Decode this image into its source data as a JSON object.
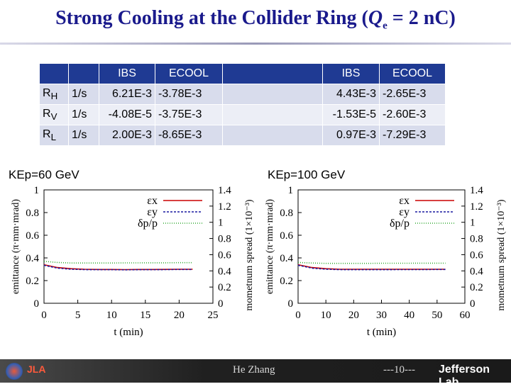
{
  "title": {
    "main": "Strong Cooling at the Collider Ring (",
    "q": "Q",
    "sub": "e",
    "rest": " = 2 nC)"
  },
  "table": {
    "headers": [
      "",
      "",
      "IBS",
      "ECOOL",
      "",
      "IBS",
      "ECOOL"
    ],
    "rows": [
      {
        "name": "R",
        "sub": "H",
        "unit": "1/s",
        "ibs1": "6.21E-3",
        "ecool1": "-3.78E-3",
        "ibs2": "4.43E-3",
        "ecool2": "-2.65E-3"
      },
      {
        "name": "R",
        "sub": "V",
        "unit": "1/s",
        "ibs1": "-4.08E-5",
        "ecool1": "-3.75E-3",
        "ibs2": "-1.53E-5",
        "ecool2": "-2.60E-3"
      },
      {
        "name": "R",
        "sub": "L",
        "unit": "1/s",
        "ibs1": "2.00E-3",
        "ecool1": "-8.65E-3",
        "ibs2": "0.97E-3",
        "ecool2": "-7.29E-3"
      }
    ]
  },
  "plot_labels": {
    "left": "KEp=60 GeV",
    "right": "KEp=100 GeV"
  },
  "colors": {
    "ex": "#cc0000",
    "ey": "#1a1aa0",
    "dp": "#33aa33",
    "header": "#1f3a93"
  },
  "chart_data": [
    {
      "type": "line",
      "title": "KEp=60 GeV",
      "xlabel": "t (min)",
      "ylabel": "emittance (π·mm·mrad)",
      "y2label": "mometnum spread (1×10⁻³)",
      "xlim": [
        0,
        25
      ],
      "ylim": [
        0,
        1
      ],
      "y2lim": [
        0,
        1.4
      ],
      "xticks": [
        "0",
        "5",
        "10",
        "15",
        "20",
        "25"
      ],
      "yticks": [
        "0",
        "0.2",
        "0.4",
        "0.6",
        "0.8",
        "1"
      ],
      "y2ticks": [
        "0",
        "0.2",
        "0.4",
        "0.6",
        "0.8",
        "1",
        "1.2",
        "1.4"
      ],
      "legend": [
        "εx",
        "εy",
        "δp/p"
      ],
      "series": [
        {
          "name": "εx",
          "x": [
            0,
            2,
            4,
            6,
            8,
            10,
            12,
            14,
            16,
            18,
            20,
            22
          ],
          "y": [
            0.34,
            0.315,
            0.305,
            0.3,
            0.298,
            0.298,
            0.297,
            0.298,
            0.298,
            0.299,
            0.3,
            0.3
          ]
        },
        {
          "name": "εy",
          "x": [
            0,
            2,
            4,
            6,
            8,
            10,
            12,
            14,
            16,
            18,
            20,
            22
          ],
          "y": [
            0.335,
            0.31,
            0.3,
            0.297,
            0.296,
            0.296,
            0.295,
            0.296,
            0.296,
            0.297,
            0.298,
            0.298
          ]
        },
        {
          "name": "δp/p",
          "x": [
            0,
            2,
            4,
            6,
            8,
            10,
            12,
            14,
            16,
            18,
            20,
            22
          ],
          "y": [
            0.37,
            0.36,
            0.355,
            0.355,
            0.355,
            0.355,
            0.356,
            0.356,
            0.357,
            0.357,
            0.358,
            0.358
          ]
        }
      ]
    },
    {
      "type": "line",
      "title": "KEp=100 GeV",
      "xlabel": "t (min)",
      "ylabel": "emittance (π·mm·mrad)",
      "y2label": "mometnum spread (1×10⁻³)",
      "xlim": [
        0,
        60
      ],
      "ylim": [
        0,
        1
      ],
      "y2lim": [
        0,
        1.4
      ],
      "xticks": [
        "0",
        "10",
        "20",
        "30",
        "40",
        "50",
        "60"
      ],
      "yticks": [
        "0",
        "0.2",
        "0.4",
        "0.6",
        "0.8",
        "1"
      ],
      "y2ticks": [
        "0",
        "0.2",
        "0.4",
        "0.6",
        "0.8",
        "1",
        "1.2",
        "1.4"
      ],
      "legend": [
        "εx",
        "εy",
        "δp/p"
      ],
      "series": [
        {
          "name": "εx",
          "x": [
            0,
            5,
            10,
            15,
            20,
            25,
            30,
            35,
            40,
            45,
            50,
            53
          ],
          "y": [
            0.34,
            0.315,
            0.305,
            0.3,
            0.3,
            0.3,
            0.3,
            0.3,
            0.3,
            0.3,
            0.3,
            0.3
          ]
        },
        {
          "name": "εy",
          "x": [
            0,
            5,
            10,
            15,
            20,
            25,
            30,
            35,
            40,
            45,
            50,
            53
          ],
          "y": [
            0.335,
            0.31,
            0.3,
            0.297,
            0.296,
            0.296,
            0.296,
            0.297,
            0.297,
            0.297,
            0.298,
            0.298
          ]
        },
        {
          "name": "δp/p",
          "x": [
            0,
            5,
            10,
            15,
            20,
            25,
            30,
            35,
            40,
            45,
            50,
            53
          ],
          "y": [
            0.36,
            0.355,
            0.352,
            0.352,
            0.352,
            0.352,
            0.353,
            0.353,
            0.353,
            0.354,
            0.354,
            0.354
          ]
        }
      ]
    }
  ],
  "footer": {
    "presenter": "He Zhang",
    "page": "---10---",
    "lab": "Jefferson Lab",
    "logo_text": "JLA"
  }
}
